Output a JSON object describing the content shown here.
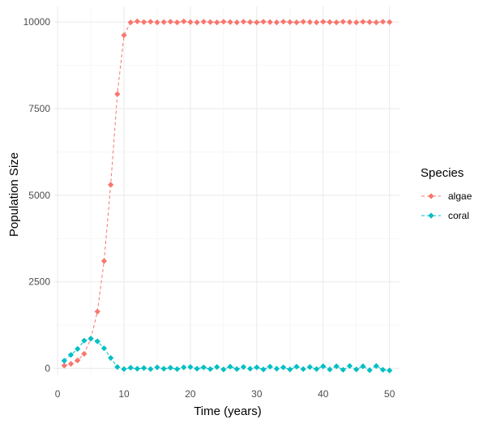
{
  "chart_data": {
    "type": "line",
    "title": "",
    "xlabel": "Time (years)",
    "ylabel": "Population Size",
    "xlim": [
      -0.5,
      51.5
    ],
    "ylim": [
      -200,
      10450
    ],
    "x_ticks": [
      0,
      10,
      20,
      30,
      40,
      50
    ],
    "y_ticks": [
      0,
      2500,
      5000,
      7500,
      10000
    ],
    "x_tick_labels": [
      "0",
      "10",
      "20",
      "30",
      "40",
      "50"
    ],
    "y_tick_labels": [
      "0",
      "2500",
      "5000",
      "7500",
      "10000"
    ],
    "grid": true,
    "line_style": "dashed",
    "marker": "diamond",
    "legend": {
      "title": "Species",
      "placement": "right"
    },
    "x": [
      1,
      2,
      3,
      4,
      5,
      6,
      7,
      8,
      9,
      10,
      11,
      12,
      13,
      14,
      15,
      16,
      17,
      18,
      19,
      20,
      21,
      22,
      23,
      24,
      25,
      26,
      27,
      28,
      29,
      30,
      31,
      32,
      33,
      34,
      35,
      36,
      37,
      38,
      39,
      40,
      41,
      42,
      43,
      44,
      45,
      46,
      47,
      48,
      49,
      50
    ],
    "series": [
      {
        "name": "algae",
        "color": "#F8766D",
        "values": [
          80,
          130,
          230,
          420,
          860,
          1640,
          3100,
          5300,
          7920,
          9620,
          9990,
          10020,
          10000,
          10010,
          9990,
          10000,
          10010,
          9990,
          10020,
          10000,
          9990,
          10010,
          10000,
          9990,
          10010,
          10000,
          9990,
          10010,
          10000,
          9990,
          10010,
          10000,
          9990,
          10010,
          10000,
          9990,
          10010,
          10000,
          9990,
          10010,
          10000,
          9990,
          10010,
          10000,
          9990,
          10010,
          10000,
          9990,
          10010,
          10000
        ]
      },
      {
        "name": "coral",
        "color": "#00BFC4",
        "values": [
          220,
          390,
          560,
          800,
          860,
          780,
          580,
          300,
          40,
          -20,
          20,
          -10,
          10,
          -20,
          30,
          -10,
          20,
          -20,
          30,
          40,
          -10,
          30,
          -20,
          40,
          -30,
          50,
          -20,
          40,
          -10,
          30,
          -30,
          50,
          -10,
          30,
          -30,
          50,
          -20,
          40,
          -20,
          60,
          -30,
          60,
          -40,
          70,
          -30,
          60,
          -50,
          70,
          -40,
          -60
        ]
      }
    ]
  }
}
